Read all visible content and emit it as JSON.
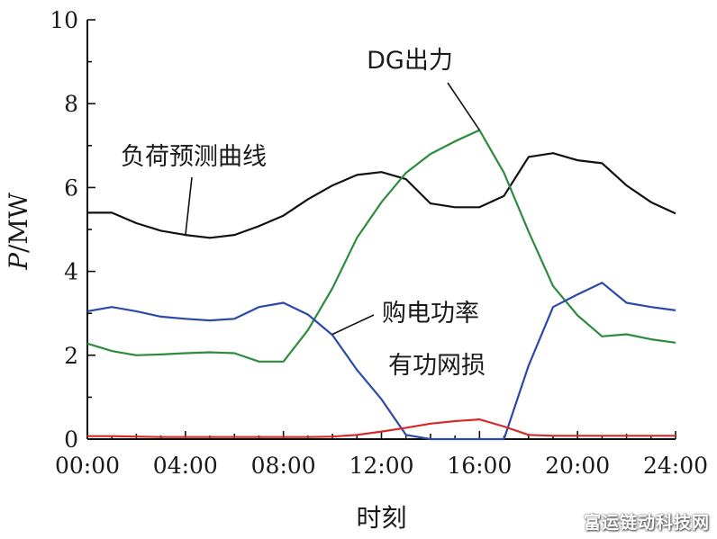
{
  "chart_data": {
    "type": "line",
    "title": "",
    "xlabel": "时刻",
    "ylabel": "P/MW",
    "ylabel_italic_part": "P",
    "ylabel_rest": "/MW",
    "xlim": [
      0,
      24
    ],
    "ylim": [
      0,
      10
    ],
    "x_ticks": [
      0,
      4,
      8,
      12,
      16,
      20,
      24
    ],
    "x_tick_labels": [
      "00:00",
      "04:00",
      "08:00",
      "12:00",
      "16:00",
      "20:00",
      "24:00"
    ],
    "y_ticks": [
      0,
      2,
      4,
      6,
      8,
      10
    ],
    "y_tick_labels": [
      "0",
      "2",
      "4",
      "6",
      "8",
      "10"
    ],
    "grid": false,
    "legend": "annotations",
    "series": [
      {
        "name": "负荷预测曲线",
        "color": "#111111",
        "x": [
          0,
          1,
          2,
          3,
          4,
          5,
          6,
          7,
          8,
          9,
          10,
          11,
          12,
          13,
          14,
          15,
          16,
          17,
          18,
          19,
          20,
          21,
          22,
          23,
          24
        ],
        "values": [
          5.4,
          5.4,
          5.15,
          4.97,
          4.87,
          4.8,
          4.87,
          5.08,
          5.33,
          5.72,
          6.05,
          6.3,
          6.37,
          6.2,
          5.62,
          5.53,
          5.53,
          5.8,
          6.73,
          6.82,
          6.65,
          6.58,
          6.05,
          5.65,
          5.38
        ]
      },
      {
        "name": "DG出力",
        "color": "#2e8b3e",
        "x": [
          0,
          1,
          2,
          3,
          4,
          5,
          6,
          7,
          8,
          9,
          10,
          11,
          12,
          13,
          14,
          15,
          16,
          17,
          18,
          19,
          20,
          21,
          22,
          23,
          24
        ],
        "values": [
          2.28,
          2.1,
          2.0,
          2.02,
          2.05,
          2.07,
          2.05,
          1.85,
          1.85,
          2.6,
          3.6,
          4.8,
          5.65,
          6.35,
          6.8,
          7.1,
          7.37,
          6.35,
          4.95,
          3.65,
          2.95,
          2.45,
          2.5,
          2.38,
          2.3
        ]
      },
      {
        "name": "购电功率",
        "color": "#2b4aa8",
        "x": [
          0,
          1,
          2,
          3,
          4,
          5,
          6,
          7,
          8,
          9,
          10,
          11,
          12,
          13,
          14,
          15,
          16,
          17,
          18,
          19,
          20,
          21,
          22,
          23,
          24
        ],
        "values": [
          3.05,
          3.15,
          3.05,
          2.92,
          2.87,
          2.83,
          2.87,
          3.15,
          3.25,
          2.97,
          2.48,
          1.65,
          0.95,
          0.1,
          0.0,
          0.0,
          0.0,
          0.0,
          1.75,
          3.15,
          3.45,
          3.73,
          3.25,
          3.15,
          3.07
        ]
      },
      {
        "name": "有功网损",
        "color": "#d42a2a",
        "x": [
          0,
          1,
          2,
          3,
          4,
          5,
          6,
          7,
          8,
          9,
          10,
          11,
          12,
          13,
          14,
          15,
          16,
          17,
          18,
          19,
          20,
          21,
          22,
          23,
          24
        ],
        "values": [
          0.07,
          0.07,
          0.06,
          0.05,
          0.05,
          0.05,
          0.05,
          0.05,
          0.05,
          0.05,
          0.06,
          0.1,
          0.18,
          0.27,
          0.37,
          0.43,
          0.47,
          0.3,
          0.1,
          0.08,
          0.08,
          0.08,
          0.08,
          0.08,
          0.08
        ]
      }
    ],
    "annotations": [
      {
        "text": "DG出力",
        "series": 1,
        "target_x": 16,
        "target_y": 7.37
      },
      {
        "text": "负荷预测曲线",
        "series": 0,
        "target_x": 4,
        "target_y": 4.85
      },
      {
        "text": "购电功率",
        "series": 2,
        "target_x": 10,
        "target_y": 2.5
      },
      {
        "text": "有功网损",
        "series": 3,
        "target_x": 15.5,
        "target_y": 0.45
      }
    ]
  },
  "watermark": "富运链动科技网"
}
